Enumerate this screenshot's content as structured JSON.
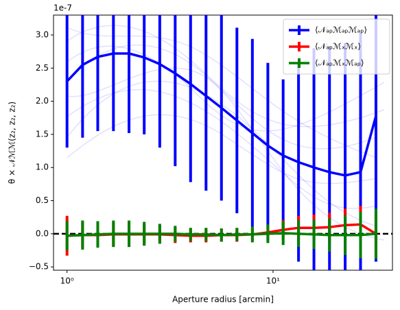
{
  "chart_data": {
    "type": "errorbar_line",
    "xlabel": "Aperture radius [arcmin]",
    "ylabel": "θ × 𝒩ℳℳ(z₂, z₂, z₂)",
    "y_offset_label": "1e-7",
    "xscale": "log",
    "xlim": [
      0.86,
      38
    ],
    "ylim": [
      -0.55,
      3.3
    ],
    "xticks": [
      {
        "value": 1,
        "label": "10⁰"
      },
      {
        "value": 10,
        "label": "10¹"
      }
    ],
    "yticks": [
      {
        "value": -0.5,
        "label": "−0.5"
      },
      {
        "value": 0,
        "label": "0.0"
      },
      0.5,
      {
        "value": 1,
        "label": "1.0"
      },
      1.5,
      {
        "value": 2,
        "label": "2.0"
      },
      2.5,
      {
        "value": 3,
        "label": "3.0"
      }
    ],
    "reference_line": 0,
    "legend": "upper right",
    "x": [
      1.0,
      1.19,
      1.41,
      1.68,
      2.0,
      2.37,
      2.82,
      3.35,
      3.98,
      4.73,
      5.62,
      6.68,
      7.94,
      9.44,
      11.2,
      13.3,
      15.8,
      18.8,
      22.4,
      26.6,
      31.6
    ],
    "series": [
      {
        "name": "⟨𝒩ₐₚℳₐₚℳₐₚ⟩",
        "color": "#0000ff",
        "values": [
          2.3,
          2.55,
          2.67,
          2.72,
          2.72,
          2.66,
          2.56,
          2.42,
          2.26,
          2.08,
          1.9,
          1.71,
          1.52,
          1.33,
          1.18,
          1.08,
          1.0,
          0.93,
          0.88,
          0.93,
          1.78
        ],
        "errors": [
          1.0,
          1.1,
          1.12,
          1.17,
          1.2,
          1.16,
          1.26,
          1.4,
          1.48,
          1.43,
          1.4,
          1.4,
          1.42,
          1.25,
          1.15,
          1.5,
          1.8,
          1.9,
          2.0,
          2.1,
          2.2
        ]
      },
      {
        "name": "⟨𝒩ₐₚℳₓℳₓ⟩",
        "color": "#ff0000",
        "values": [
          -0.03,
          -0.02,
          -0.02,
          -0.01,
          -0.01,
          -0.01,
          -0.01,
          -0.02,
          -0.03,
          -0.03,
          -0.02,
          -0.02,
          -0.01,
          0.02,
          0.06,
          0.09,
          0.09,
          0.1,
          0.13,
          0.14,
          0.0
        ],
        "errors": [
          0.3,
          0.2,
          0.18,
          0.18,
          0.18,
          0.16,
          0.14,
          0.12,
          0.1,
          0.1,
          0.1,
          0.1,
          0.1,
          0.12,
          0.15,
          0.18,
          0.2,
          0.22,
          0.25,
          0.28,
          0.3
        ]
      },
      {
        "name": "⟨𝒩ₐₚℳₓℳₐₚ⟩",
        "color": "#008000",
        "values": [
          -0.03,
          -0.02,
          -0.01,
          0.0,
          0.0,
          0.0,
          0.0,
          0.0,
          -0.01,
          -0.01,
          -0.02,
          -0.01,
          -0.01,
          0.0,
          0.01,
          0.0,
          -0.01,
          -0.02,
          -0.02,
          -0.02,
          0.0
        ],
        "errors": [
          0.22,
          0.22,
          0.2,
          0.2,
          0.2,
          0.18,
          0.15,
          0.12,
          0.1,
          0.1,
          0.1,
          0.1,
          0.12,
          0.14,
          0.18,
          0.2,
          0.22,
          0.25,
          0.3,
          0.35,
          0.38
        ]
      }
    ]
  }
}
